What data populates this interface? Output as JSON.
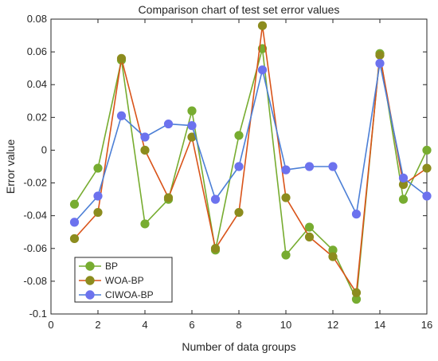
{
  "chart_data": {
    "type": "line",
    "title": "Comparison chart of test set error values",
    "xlabel": "Number of data groups",
    "ylabel": "Error value",
    "xlim": [
      0,
      16
    ],
    "ylim": [
      -0.1,
      0.08
    ],
    "xticks": [
      0,
      2,
      4,
      6,
      8,
      10,
      12,
      14,
      16
    ],
    "xtick_labels": [
      "0",
      "2",
      "4",
      "6",
      "8",
      "10",
      "12",
      "14",
      "16"
    ],
    "yticks": [
      -0.1,
      -0.08,
      -0.06,
      -0.04,
      -0.02,
      0,
      0.02,
      0.04,
      0.06,
      0.08
    ],
    "ytick_labels": [
      "-0.1",
      "-0.08",
      "-0.06",
      "-0.04",
      "-0.02",
      "0",
      "0.02",
      "0.04",
      "0.06",
      "0.08"
    ],
    "grid": false,
    "legend_position": "bottom-left",
    "x": [
      1,
      2,
      3,
      4,
      5,
      6,
      7,
      8,
      9,
      10,
      11,
      12,
      13,
      14,
      15,
      16
    ],
    "series": [
      {
        "name": "BP",
        "color": "#77AC30",
        "values": [
          -0.033,
          -0.011,
          0.055,
          -0.045,
          -0.03,
          0.024,
          -0.061,
          0.009,
          0.062,
          -0.064,
          -0.047,
          -0.061,
          -0.091,
          0.059,
          -0.03,
          0.0
        ]
      },
      {
        "name": "WOA-BP",
        "color": "#D95319",
        "marker_color": "#8C8C1E",
        "values": [
          -0.054,
          -0.038,
          0.056,
          0.0,
          -0.029,
          0.008,
          -0.06,
          -0.038,
          0.076,
          -0.029,
          -0.053,
          -0.065,
          -0.087,
          0.058,
          -0.021,
          -0.011
        ]
      },
      {
        "name": "CIWOA-BP",
        "color": "#4C7FD6",
        "marker_color": "#6C72EE",
        "values": [
          -0.044,
          -0.028,
          0.021,
          0.008,
          0.016,
          0.015,
          -0.03,
          -0.01,
          0.049,
          -0.012,
          -0.01,
          -0.01,
          -0.039,
          0.053,
          -0.017,
          -0.028
        ]
      }
    ]
  }
}
